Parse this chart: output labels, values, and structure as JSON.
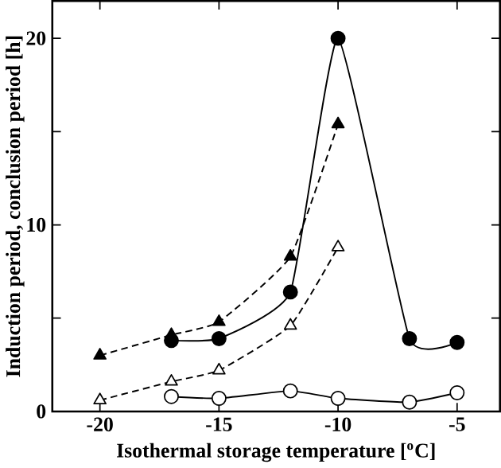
{
  "chart_data": {
    "type": "line",
    "xlabel": "Isothermal storage temperature [$^{o}$C]",
    "ylabel": "Induction period, conclusion period [h]",
    "xlim": [
      -22,
      -3.2
    ],
    "ylim": [
      0,
      22
    ],
    "xticks": [
      -20,
      -15,
      -10,
      -5
    ],
    "yticks": [
      0,
      {
        "value": 5,
        "label": null
      },
      10,
      {
        "value": 15,
        "label": null
      },
      20
    ],
    "grid": false,
    "series": [
      {
        "x": [
          -17,
          -15,
          -12,
          -10,
          -7,
          -5
        ],
        "values": [
          3.8,
          3.9,
          6.4,
          20,
          3.9,
          3.7
        ],
        "color": "#000000",
        "marker": "circle",
        "line_style": "solid"
      },
      {
        "x": [
          -20,
          -17,
          -15,
          -12,
          -10
        ],
        "values": [
          3.0,
          4.1,
          4.8,
          8.3,
          15.4
        ],
        "color": "#000000",
        "marker": "triangle",
        "line_style": "dashed"
      },
      {
        "x": [
          -20,
          -17,
          -15,
          -12,
          -10
        ],
        "values": [
          0.6,
          1.6,
          2.2,
          4.6,
          8.8
        ],
        "color": "#ffffff",
        "marker": "triangle",
        "line_style": "dashed"
      },
      {
        "x": [
          -17,
          -15,
          -12,
          -10,
          -7,
          -5
        ],
        "values": [
          0.8,
          0.7,
          1.1,
          0.7,
          0.5,
          1.0
        ],
        "color": "#ffffff",
        "marker": "circle",
        "line_style": "solid"
      }
    ]
  }
}
